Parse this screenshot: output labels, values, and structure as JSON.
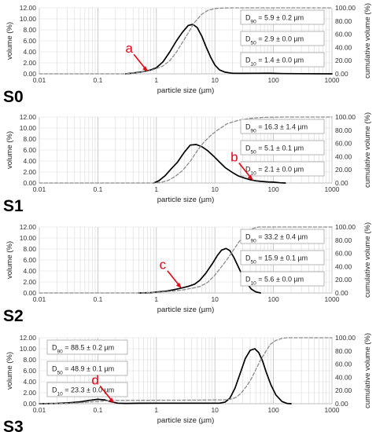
{
  "colors": {
    "volume_line": "#000000",
    "cumulative_line": "#8c8c8c",
    "grid": "#d9d9d9",
    "axis": "#bfbfbf",
    "callout": "#e30613",
    "box_border": "#a6a6a6"
  },
  "chart_data": [
    {
      "type": "line",
      "label": "S0",
      "xlabel": "particle size (µm)",
      "ylabel": "volume (%)",
      "y2label": "cumulative volume (%)",
      "xscale": "log",
      "xlim": [
        0.01,
        1000
      ],
      "ylim": [
        0,
        12
      ],
      "y2lim": [
        0,
        100
      ],
      "x_ticks": [
        "0.01",
        "0.1",
        "1",
        "10",
        "100",
        "1000"
      ],
      "y_ticks": [
        "0.00",
        "2.00",
        "4.00",
        "6.00",
        "8.00",
        "10.00",
        "12.00"
      ],
      "y2_ticks": [
        "0.00",
        "20.00",
        "40.00",
        "60.00",
        "80.00",
        "100.00"
      ],
      "grid": true,
      "legend_position": "right",
      "stats": [
        "D90 =  5.9 ± 0.2 µm",
        "D50 =  2.9 ± 0.0 µm",
        "D10 =  1.4 ± 0.0 µm"
      ],
      "callout": {
        "text": "a",
        "target_x": 0.72,
        "target_y": 0.4
      },
      "series": [
        {
          "kind": "volume",
          "x": [
            0.3,
            0.4,
            0.6,
            0.8,
            1.0,
            1.3,
            1.7,
            2.2,
            2.8,
            3.5,
            4.2,
            5.0,
            6.0,
            7.0,
            8.5,
            10,
            12,
            15,
            20,
            30,
            50,
            80,
            100,
            150,
            1000
          ],
          "y": [
            0,
            0.15,
            0.4,
            0.7,
            1.1,
            2.2,
            4.0,
            6.0,
            7.6,
            8.8,
            9.0,
            8.4,
            6.8,
            5.0,
            3.0,
            1.6,
            0.7,
            0.3,
            0.1,
            0.08,
            0.1,
            0.12,
            0.08,
            0.05,
            0
          ]
        },
        {
          "kind": "cumulative",
          "x": [
            0.01,
            0.3,
            0.5,
            0.8,
            1.0,
            1.3,
            1.7,
            2.2,
            2.9,
            3.5,
            4.5,
            5.9,
            7.5,
            10,
            13,
            20,
            1000
          ],
          "y": [
            0,
            0,
            2,
            5,
            8,
            12,
            20,
            33,
            50,
            62,
            78,
            90,
            96,
            99,
            99.7,
            100,
            100
          ]
        }
      ]
    },
    {
      "type": "line",
      "label": "S1",
      "xlabel": "particle size (µm)",
      "ylabel": "volume (%)",
      "y2label": "cumulative volume (%)",
      "xscale": "log",
      "xlim": [
        0.01,
        1000
      ],
      "ylim": [
        0,
        12
      ],
      "y2lim": [
        0,
        100
      ],
      "x_ticks": [
        "0.01",
        "0.1",
        "1",
        "10",
        "100",
        "1000"
      ],
      "y_ticks": [
        "0.00",
        "2.00",
        "4.00",
        "6.00",
        "8.00",
        "10.00",
        "12.00"
      ],
      "y2_ticks": [
        "0.00",
        "20.00",
        "40.00",
        "60.00",
        "80.00",
        "100.00"
      ],
      "grid": true,
      "legend_position": "right",
      "stats": [
        "D90 =  16.3 ± 1.4 µm",
        "D50 =  5.1 ± 0.1 µm",
        "D10 =  2.1 ± 0.0 µm"
      ],
      "callout": {
        "text": "b",
        "target_x": 45,
        "target_y": 0.5
      },
      "series": [
        {
          "kind": "volume",
          "x": [
            0.9,
            1.1,
            1.4,
            1.8,
            2.3,
            3.0,
            3.8,
            4.8,
            6.0,
            7.5,
            9.5,
            12,
            15,
            20,
            25,
            32,
            40,
            50,
            60,
            80,
            100,
            130,
            160
          ],
          "y": [
            0,
            0.4,
            1.3,
            2.6,
            3.8,
            5.6,
            6.9,
            7.0,
            6.6,
            5.9,
            4.9,
            3.8,
            2.8,
            1.9,
            1.3,
            0.9,
            0.6,
            0.4,
            0.3,
            0.2,
            0.15,
            0.05,
            0
          ]
        },
        {
          "kind": "cumulative",
          "x": [
            0.01,
            0.9,
            1.2,
            1.6,
            2.1,
            2.8,
            3.8,
            5.1,
            6.5,
            8.5,
            11,
            16.3,
            25,
            40,
            70,
            100,
            160,
            1000
          ],
          "y": [
            0,
            0,
            1,
            4,
            10,
            19,
            33,
            50,
            62,
            72,
            80,
            90,
            95,
            98,
            99.5,
            99.8,
            100,
            100
          ]
        }
      ]
    },
    {
      "type": "line",
      "label": "S2",
      "xlabel": "particle size (µm)",
      "ylabel": "volume (%)",
      "y2label": "cumulative volume (%)",
      "xscale": "log",
      "xlim": [
        0.01,
        1000
      ],
      "ylim": [
        0,
        12
      ],
      "y2lim": [
        0,
        100
      ],
      "x_ticks": [
        "0.01",
        "0.1",
        "1",
        "10",
        "100",
        "1000"
      ],
      "y_ticks": [
        "0.00",
        "2.00",
        "4.00",
        "6.00",
        "8.00",
        "10.00",
        "12.00"
      ],
      "y2_ticks": [
        "0.00",
        "20.00",
        "40.00",
        "60.00",
        "80.00",
        "100.00"
      ],
      "grid": true,
      "legend_position": "right",
      "stats": [
        "D90 =  33.2 ± 0.4 µm",
        "D50 =  15.9 ± 0.1 µm",
        "D10 =  5.6 ± 0.0 µm"
      ],
      "callout": {
        "text": "c",
        "target_x": 2.7,
        "target_y": 0.9
      },
      "series": [
        {
          "kind": "volume",
          "x": [
            0.5,
            0.8,
            1.0,
            1.5,
            2.0,
            2.7,
            3.5,
            4.5,
            5.5,
            7.0,
            9.0,
            11,
            13,
            15.5,
            18,
            21,
            25,
            30,
            36,
            42,
            50,
            60
          ],
          "y": [
            0,
            0.05,
            0.15,
            0.35,
            0.6,
            0.9,
            1.2,
            1.6,
            2.3,
            3.6,
            5.3,
            6.8,
            7.8,
            8.1,
            7.7,
            6.5,
            4.8,
            3.0,
            1.6,
            0.7,
            0.2,
            0
          ]
        },
        {
          "kind": "cumulative",
          "x": [
            0.01,
            0.5,
            1.0,
            2.0,
            3.0,
            4.5,
            5.6,
            7.5,
            10,
            12.5,
            15.9,
            20,
            26,
            33.2,
            42,
            55,
            1000
          ],
          "y": [
            0,
            0,
            1,
            3,
            5,
            8,
            10,
            16,
            27,
            38,
            50,
            63,
            78,
            90,
            97,
            100,
            100
          ]
        }
      ]
    },
    {
      "type": "line",
      "label": "S3",
      "xlabel": "particle size (µm)",
      "ylabel": "volume (%)",
      "y2label": "cumulative volume (%)",
      "xscale": "log",
      "xlim": [
        0.01,
        1000
      ],
      "ylim": [
        0,
        12
      ],
      "y2lim": [
        0,
        100
      ],
      "x_ticks": [
        "0.01",
        "0.1",
        "1",
        "10",
        "100",
        "1000"
      ],
      "y_ticks": [
        "0.00",
        "2.00",
        "4.00",
        "6.00",
        "8.00",
        "10.00",
        "12.00"
      ],
      "y2_ticks": [
        "0.00",
        "20.00",
        "40.00",
        "60.00",
        "80.00",
        "100.00"
      ],
      "grid": true,
      "legend_position": "left",
      "stats": [
        "D90 =  88.5 ± 0.2 µm",
        "D50 =  48.9 ± 0.1 µm",
        "D10 =  23.3 ± 0.0 µm"
      ],
      "callout": {
        "text": "d",
        "target_x": 0.19,
        "target_y": 0.1
      },
      "series": [
        {
          "kind": "volume",
          "x": [
            0.01,
            0.02,
            0.03,
            0.05,
            0.07,
            0.1,
            0.13,
            0.17,
            0.22,
            0.3,
            0.5,
            1,
            3,
            7,
            12,
            15,
            18,
            22,
            27,
            33,
            40,
            48,
            56,
            65,
            75,
            90,
            110,
            140,
            170,
            200
          ],
          "y": [
            0,
            0.05,
            0.15,
            0.35,
            0.6,
            0.8,
            0.7,
            0.35,
            0.1,
            0.05,
            0.08,
            0.1,
            0.1,
            0.1,
            0.1,
            0.3,
            1.0,
            2.8,
            5.5,
            8.2,
            9.7,
            10.0,
            9.3,
            7.8,
            5.8,
            3.5,
            1.6,
            0.4,
            0.05,
            0
          ]
        },
        {
          "kind": "cumulative",
          "x": [
            0.01,
            0.03,
            0.06,
            0.1,
            0.15,
            0.2,
            0.3,
            1,
            5,
            12,
            16,
            20,
            23.3,
            28,
            35,
            42,
            48.9,
            60,
            75,
            88.5,
            110,
            140,
            170,
            1000
          ],
          "y": [
            0,
            0.5,
            2,
            3.5,
            4.5,
            5,
            5,
            5.2,
            5.5,
            5.8,
            6,
            7.5,
            10,
            16,
            27,
            38,
            50,
            66,
            80,
            90,
            96,
            99,
            100,
            100
          ]
        }
      ]
    }
  ]
}
